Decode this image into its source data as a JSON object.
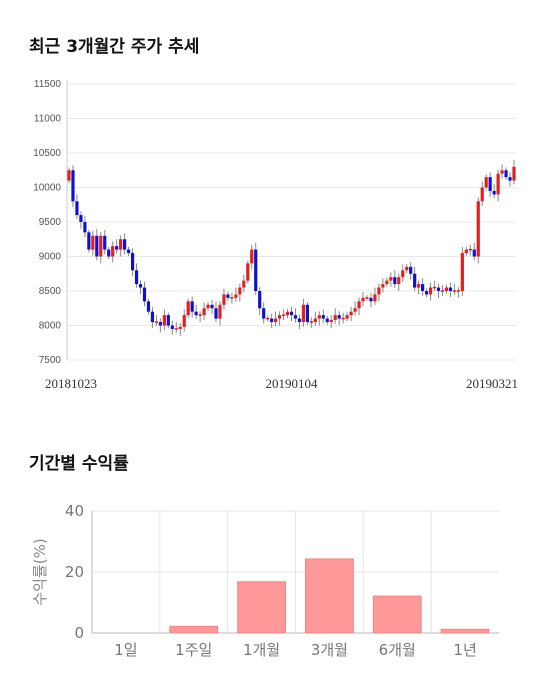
{
  "stock_title": "최근 3개월간 주가 추세",
  "returns_title": "기간별 수익률",
  "chart_data": [
    {
      "type": "candlestick",
      "title": "최근 3개월간 주가 추세",
      "ylim": [
        7500,
        11500
      ],
      "yticks": [
        7500,
        8000,
        8500,
        9000,
        9500,
        10000,
        10500,
        11000,
        11500
      ],
      "date_labels": [
        "20181023",
        "20190104",
        "20190321"
      ],
      "up_color": "#dd2222",
      "down_color": "#1111cc",
      "close": [
        10250,
        9800,
        9600,
        9500,
        9350,
        9100,
        9300,
        9000,
        9300,
        9100,
        9000,
        9150,
        9100,
        9250,
        9100,
        9050,
        8800,
        8600,
        8550,
        8350,
        8200,
        8050,
        8050,
        8000,
        8150,
        8000,
        7950,
        7950,
        7980,
        8150,
        8350,
        8200,
        8150,
        8150,
        8250,
        8300,
        8250,
        8100,
        8300,
        8450,
        8400,
        8400,
        8450,
        8550,
        8650,
        8900,
        9100,
        8500,
        8250,
        8100,
        8100,
        8050,
        8100,
        8150,
        8150,
        8200,
        8150,
        8100,
        8050,
        8300,
        8050,
        8050,
        8100,
        8150,
        8100,
        8050,
        8080,
        8150,
        8100,
        8100,
        8150,
        8200,
        8250,
        8350,
        8400,
        8400,
        8350,
        8450,
        8550,
        8600,
        8650,
        8700,
        8600,
        8700,
        8800,
        8850,
        8750,
        8550,
        8600,
        8500,
        8450,
        8550,
        8550,
        8500,
        8500,
        8550,
        8500,
        8500,
        8500,
        9050,
        9100,
        9100,
        9000,
        9800,
        10000,
        10150,
        9950,
        9900,
        10200,
        10250,
        10150,
        10100,
        10300
      ]
    },
    {
      "type": "bar",
      "title": "기간별 수익률",
      "ylabel": "수익률(%)",
      "ylim": [
        0,
        40
      ],
      "yticks": [
        0,
        20,
        40
      ],
      "categories": [
        "1일",
        "1주일",
        "1개월",
        "3개월",
        "6개월",
        "1년"
      ],
      "values": [
        0,
        2.2,
        16.8,
        24.3,
        12.1,
        1.2
      ],
      "bar_color": "#ff9999"
    }
  ]
}
